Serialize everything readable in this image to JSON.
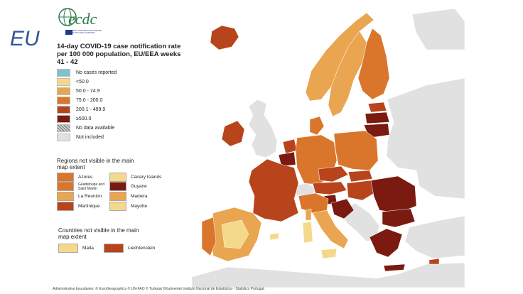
{
  "slide_label": "EU",
  "logo": {
    "text": "ecdc",
    "subtext": "EUROPEAN CENTRE FOR DISEASE PREVENTION AND CONTROL"
  },
  "map_title": "14-day COVID-19 case notification rate per 100 000 population, EU/EEA weeks 41 - 42",
  "legend": [
    {
      "label": "No cases reported",
      "color": "#7ec3cc"
    },
    {
      "label": "<50.0",
      "color": "#f5d98b"
    },
    {
      "label": "50.0 - 74.9",
      "color": "#e9a550"
    },
    {
      "label": "75.0 - 200.0",
      "color": "#d9762b"
    },
    {
      "label": "200.1 - 499.9",
      "color": "#b8441c"
    },
    {
      "label": "≥500.0",
      "color": "#7a1a10"
    },
    {
      "label": "No data available",
      "color": "hatch"
    },
    {
      "label": "Not included",
      "color": "#e1e1e1"
    }
  ],
  "regions_title": "Regions not visible in the main map extent",
  "regions": [
    {
      "label": "Azores",
      "color": "#d9762b"
    },
    {
      "label": "Guadeloupe and Saint Martin",
      "color": "#d9762b"
    },
    {
      "label": "La Reunion",
      "color": "#e9a550"
    },
    {
      "label": "Martinique",
      "color": "#b8441c"
    },
    {
      "label": "Canary Islands",
      "color": "#f5d98b"
    },
    {
      "label": "Guyane",
      "color": "#7a1a10"
    },
    {
      "label": "Madeira",
      "color": "#e9a550"
    },
    {
      "label": "Mayotte",
      "color": "#f5d98b"
    }
  ],
  "countries_title": "Countries not visible in the main map extent",
  "countries": [
    {
      "label": "Malta",
      "color": "#f5d98b"
    },
    {
      "label": "Liechtenstein",
      "color": "#b8441c"
    }
  ],
  "footer": "Administrative boundaries: © EuroGeographics © UN-FAO © Turkstat ©Kartverket Instituto Nacional de Estatística - Statistics Portugal."
}
